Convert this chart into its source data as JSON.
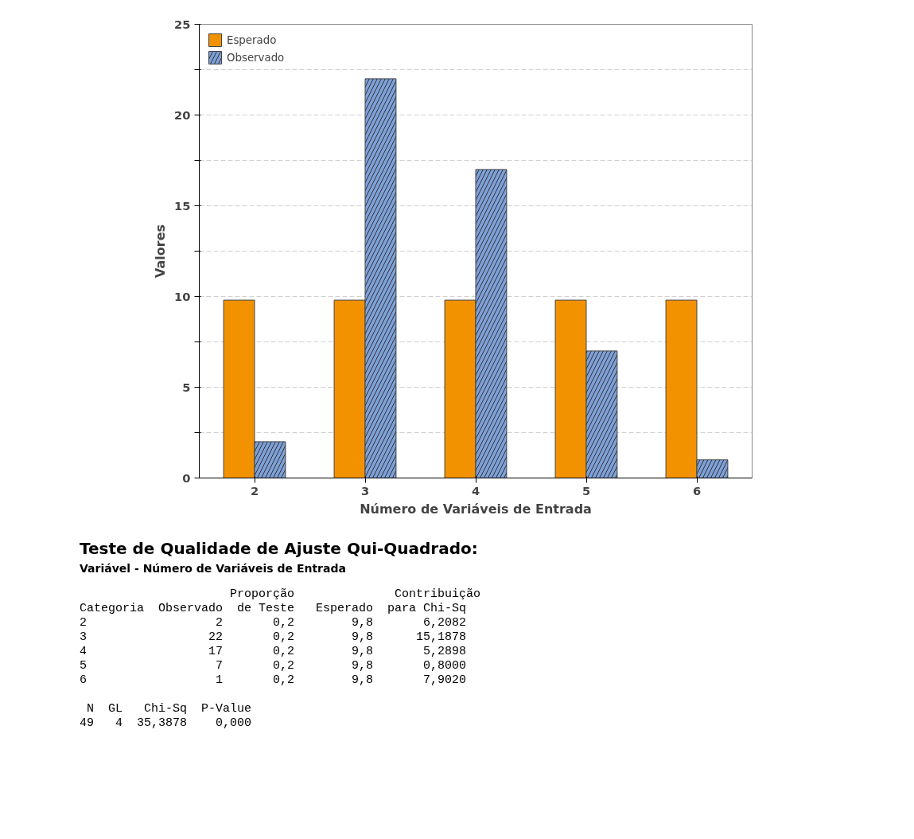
{
  "chart_data": {
    "type": "bar",
    "xlabel": "Número de Variáveis de Entrada",
    "ylabel": "Valores",
    "categories": [
      "2",
      "3",
      "4",
      "5",
      "6"
    ],
    "series": [
      {
        "name": "Esperado",
        "color": "#f39200",
        "values": [
          9.8,
          9.8,
          9.8,
          9.8,
          9.8
        ]
      },
      {
        "name": "Observado",
        "color": "#7da0d8",
        "values": [
          2,
          22,
          17,
          7,
          1
        ]
      }
    ],
    "ylim": [
      0,
      25
    ],
    "yticks": [
      0,
      {
        "value": 2.5,
        "label": null
      },
      5,
      {
        "value": 7.5,
        "label": null
      },
      10,
      {
        "value": 12.5,
        "label": null
      },
      15,
      {
        "value": 17.5,
        "label": null
      },
      20,
      {
        "value": 22.5,
        "label": null
      },
      25
    ],
    "grid": "y",
    "legend": "top left",
    "annotations": [
      "Teste de Qualidade de Ajuste Qui-Quadrado:",
      "Variável -  Número de Variáveis de Entrada",
      "                     Proporção              Contribuição",
      "Categoria  Observado  de Teste   Esperado  para Chi-Sq",
      "2                  2       0,2        9,8       6,2082",
      "3                 22       0,2        9,8      15,1878",
      "4                 17       0,2        9,8       5,2898",
      "5                  7       0,2        9,8       0,8000",
      "6                  1       0,2        9,8       7,9020",
      " N  GL   Chi-Sq  P-Value",
      "49   4  35,3878    0,000"
    ]
  }
}
